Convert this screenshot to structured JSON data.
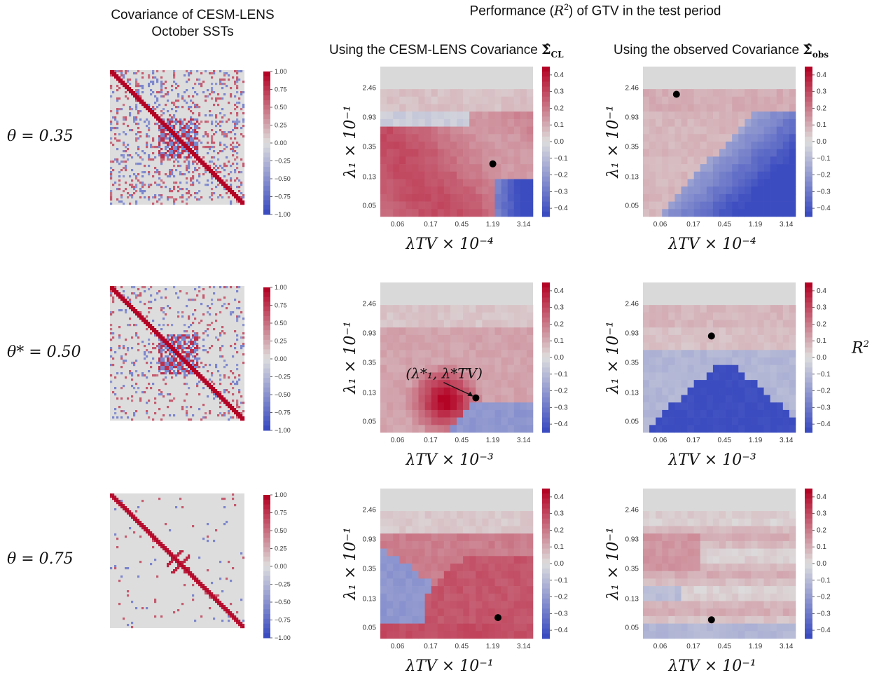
{
  "figure": {
    "col1_title_line1": "Covariance of CESM-LENS",
    "col1_title_line2": "October SSTs",
    "header_prefix": "Performance (",
    "header_r": "R",
    "header_sup": "2",
    "header_suffix": ") of GTV in the test period",
    "col2_title_prefix": "Using the CESM-LENS Covariance ",
    "col2_title_symbol": "Σ̂",
    "col2_title_sub": "CL",
    "col3_title_prefix": "Using the observed Covariance ",
    "col3_title_symbol": "Σ̂",
    "col3_title_sub": "obs",
    "right_label": "R",
    "right_label_sup": "2",
    "annotation_label": "(λ*₁, λ*TV)"
  },
  "rows": [
    {
      "theta_label": "θ = 0.35",
      "x_axis_label": "λTV × 10⁻⁴"
    },
    {
      "theta_label": "θ* = 0.50",
      "x_axis_label": "λTV × 10⁻³"
    },
    {
      "theta_label": "θ = 0.75",
      "x_axis_label": "λTV × 10⁻¹"
    }
  ],
  "colors": {
    "low": "#3b4cc0",
    "mid": "#dddddd",
    "high": "#b40426",
    "background": "#d9d9d9"
  },
  "chart_data": [
    {
      "type": "heatmap",
      "name": "covariance-matrices",
      "colorbar_ticks": [
        "1.00",
        "0.75",
        "0.50",
        "0.25",
        "0.00",
        "−0.25",
        "−0.50",
        "−0.75",
        "−1.00"
      ],
      "vlim": [
        -1.0,
        1.0
      ]
    },
    {
      "type": "heatmap",
      "name": "r2-performance-grids",
      "y_tick_labels": [
        "2.46",
        "0.93",
        "0.35",
        "0.13",
        "0.05"
      ],
      "x_tick_labels": [
        "0.06",
        "0.17",
        "0.45",
        "1.19",
        "3.14"
      ],
      "y_axis_label": "λ₁ × 10⁻¹",
      "colorbar_ticks": [
        "0.4",
        "0.3",
        "0.2",
        "0.1",
        "0.0",
        "−0.1",
        "−0.2",
        "−0.3",
        "−0.4"
      ],
      "vlim": [
        -0.45,
        0.45
      ],
      "optimum_markers": [
        {
          "row": 1,
          "column": "CL",
          "lambda_tv": 1.19,
          "lambda_1": 0.2
        },
        {
          "row": 1,
          "column": "obs",
          "lambda_tv": 0.1,
          "lambda_1": 2.0
        },
        {
          "row": 2,
          "column": "CL",
          "lambda_tv": 0.7,
          "lambda_1": 0.11
        },
        {
          "row": 2,
          "column": "obs",
          "lambda_tv": 0.3,
          "lambda_1": 0.85
        },
        {
          "row": 3,
          "column": "CL",
          "lambda_tv": 1.4,
          "lambda_1": 0.07
        },
        {
          "row": 3,
          "column": "obs",
          "lambda_tv": 0.3,
          "lambda_1": 0.065
        }
      ]
    }
  ]
}
